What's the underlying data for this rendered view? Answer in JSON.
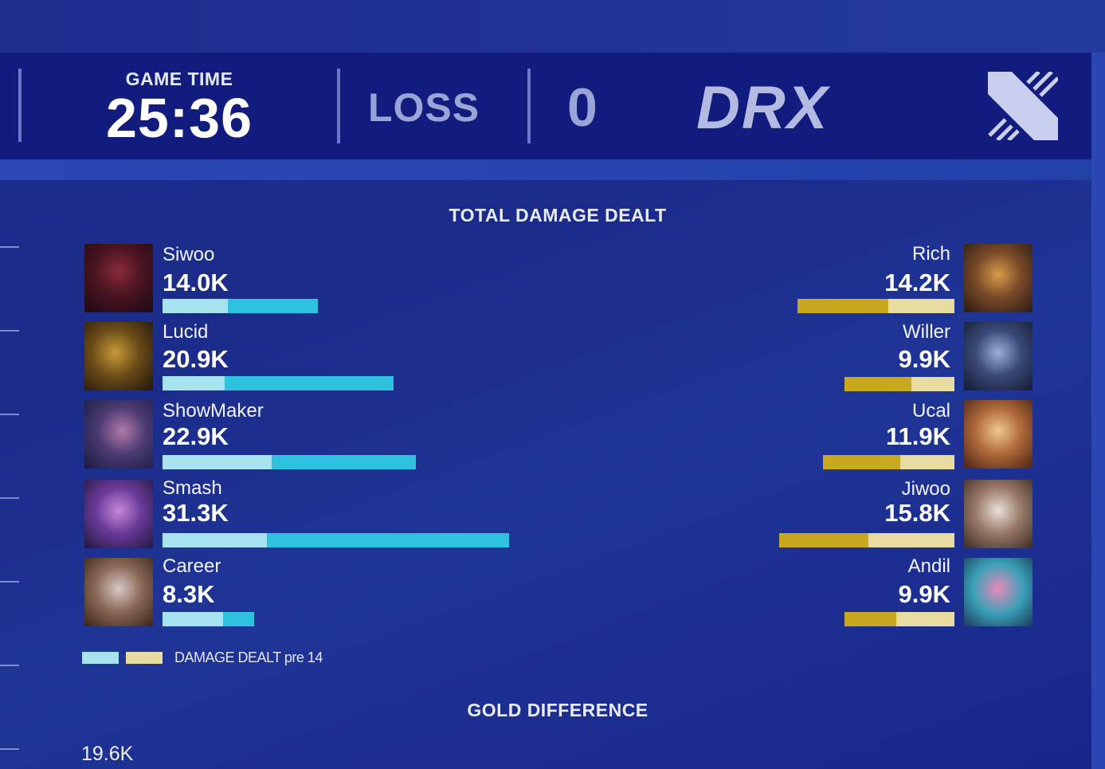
{
  "header": {
    "game_time_label": "GAME TIME",
    "game_time": "25:36",
    "result": "LOSS",
    "score": "0",
    "team": "DRX"
  },
  "damage": {
    "title": "TOTAL DAMAGE DEALT",
    "max_value_k": 31.3,
    "left_colors": {
      "pre14": "#a7e3ee",
      "total": "#2ec2df"
    },
    "right_colors": {
      "pre14": "#e8dca0",
      "total": "#c8a81e"
    },
    "left_players": [
      {
        "name": "Siwoo",
        "value": "14.0K",
        "total_k": 14.0,
        "pre14_fraction": 0.42
      },
      {
        "name": "Lucid",
        "value": "20.9K",
        "total_k": 20.9,
        "pre14_fraction": 0.27
      },
      {
        "name": "ShowMaker",
        "value": "22.9K",
        "total_k": 22.9,
        "pre14_fraction": 0.43
      },
      {
        "name": "Smash",
        "value": "31.3K",
        "total_k": 31.3,
        "pre14_fraction": 0.3
      },
      {
        "name": "Career",
        "value": "8.3K",
        "total_k": 8.3,
        "pre14_fraction": 0.66
      }
    ],
    "right_players": [
      {
        "name": "Rich",
        "value": "14.2K",
        "total_k": 14.2,
        "pre14_fraction": 0.42
      },
      {
        "name": "Willer",
        "value": "9.9K",
        "total_k": 9.9,
        "pre14_fraction": 0.39
      },
      {
        "name": "Ucal",
        "value": "11.9K",
        "total_k": 11.9,
        "pre14_fraction": 0.41
      },
      {
        "name": "Jiwoo",
        "value": "15.8K",
        "total_k": 15.8,
        "pre14_fraction": 0.49
      },
      {
        "name": "Andil",
        "value": "9.9K",
        "total_k": 9.9,
        "pre14_fraction": 0.53
      }
    ],
    "legend_label": "DAMAGE DEALT pre 14"
  },
  "gold": {
    "title": "GOLD DIFFERENCE",
    "value": "19.6K"
  }
}
